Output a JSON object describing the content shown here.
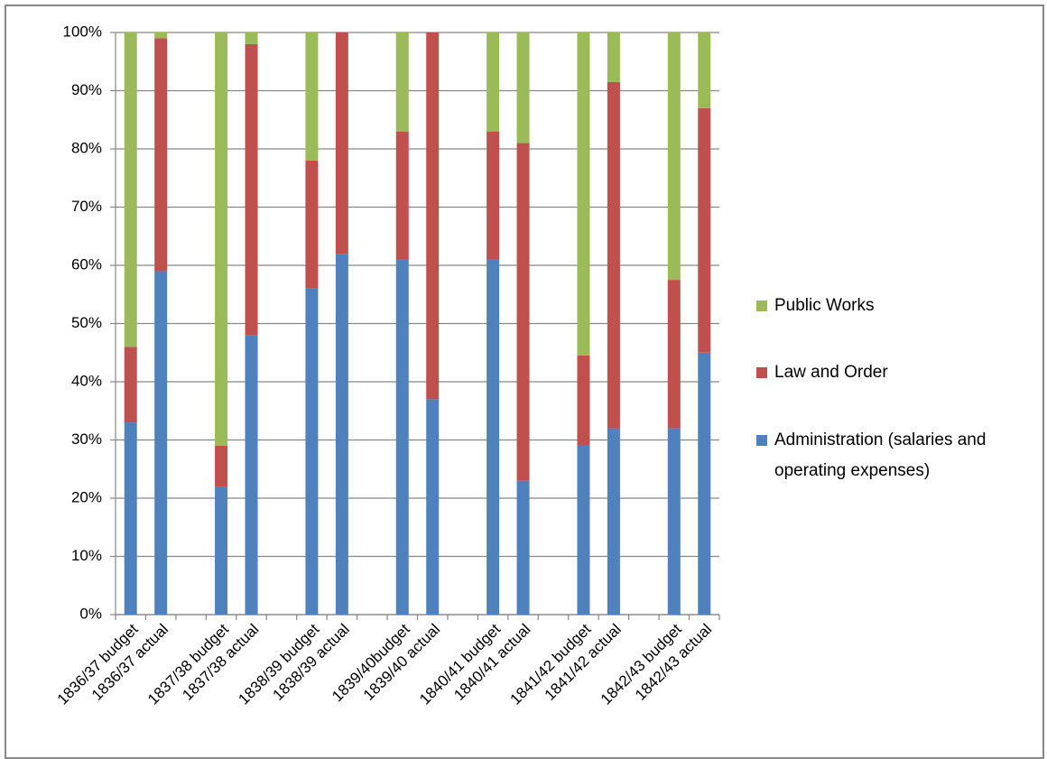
{
  "chart_data": {
    "type": "stacked_bar_percent",
    "categories": [
      "1836/37 budget",
      "1836/37 actual",
      null,
      "1837/38 budget",
      "1837/38 actual",
      null,
      "1838/39 budget",
      "1838/39 actual",
      null,
      "1839/40budget",
      "1839/40 actual",
      null,
      "1840/41 budget",
      "1840/41 actual",
      null,
      "1841/42 budget",
      "1841/42 actual",
      null,
      "1842/43 budget",
      "1842/43 actual"
    ],
    "series": [
      {
        "name": "Administration (salaries and operating expenses)",
        "color": "#4f81bd",
        "values": [
          33,
          59,
          null,
          22,
          48,
          null,
          56,
          62,
          null,
          61,
          37,
          null,
          61,
          23,
          null,
          29,
          32,
          null,
          32,
          45
        ]
      },
      {
        "name": "Law and Order",
        "color": "#c0504d",
        "values": [
          13,
          40,
          null,
          7,
          50,
          null,
          22,
          38,
          null,
          22,
          63,
          null,
          22,
          58,
          null,
          15.5,
          59.5,
          null,
          25.5,
          42
        ]
      },
      {
        "name": "Public Works",
        "color": "#9bbb59",
        "values": [
          54,
          1,
          null,
          71,
          2,
          null,
          22,
          0,
          null,
          17,
          0,
          null,
          17,
          19,
          null,
          55.5,
          8.5,
          null,
          42.5,
          13
        ]
      }
    ],
    "ylim": [
      0,
      100
    ],
    "yticks": [
      {
        "value": 0,
        "label": "0%"
      },
      {
        "value": 10,
        "label": "10%"
      },
      {
        "value": 20,
        "label": "20%"
      },
      {
        "value": 30,
        "label": "30%"
      },
      {
        "value": 40,
        "label": "40%"
      },
      {
        "value": 50,
        "label": "50%"
      },
      {
        "value": 60,
        "label": "60%"
      },
      {
        "value": 70,
        "label": "70%"
      },
      {
        "value": 80,
        "label": "80%"
      },
      {
        "value": 90,
        "label": "90%"
      },
      {
        "value": 100,
        "label": "100%"
      }
    ],
    "grid": true,
    "legend": "right"
  }
}
